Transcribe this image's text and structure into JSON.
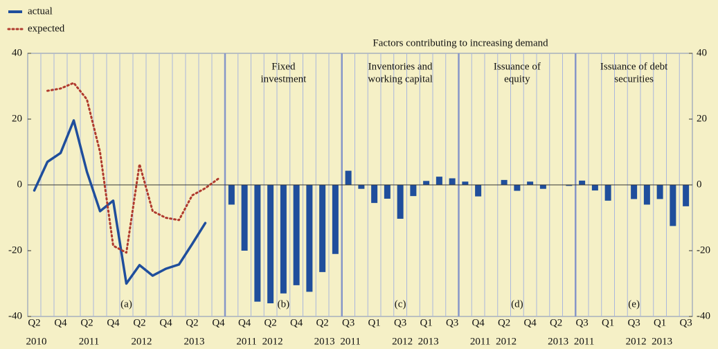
{
  "heading": "Factors contributing to increasing demand",
  "chart_data": [
    {
      "type": "line",
      "annotation": "(a)",
      "categories": [
        "Q2",
        null,
        "Q4",
        null,
        "Q2",
        null,
        "Q4",
        null,
        "Q2",
        null,
        "Q4",
        null,
        "Q2",
        null,
        "Q4"
      ],
      "years": [
        "2010",
        null,
        null,
        null,
        "2011",
        null,
        null,
        null,
        "2012",
        null,
        null,
        null,
        "2013",
        null,
        null
      ],
      "series": [
        {
          "name": "actual",
          "color": "#1f4e9c",
          "dash": "solid",
          "values": [
            -1.7,
            7,
            9.7,
            19.6,
            4,
            -8,
            -4.8,
            -30,
            -24.4,
            -27.6,
            -25.5,
            -24.2,
            -18,
            -11.6,
            null
          ]
        },
        {
          "name": "expected",
          "color": "#b03a2e",
          "dash": "dotted",
          "values": [
            null,
            28.6,
            29.3,
            31,
            26,
            10,
            -18.5,
            -20.6,
            6.3,
            -8,
            -10,
            -10.7,
            -3.2,
            -1,
            1.9
          ]
        }
      ],
      "ylim": [
        -40,
        40
      ],
      "yticks": [
        -40,
        -20,
        0,
        20,
        40
      ]
    },
    {
      "type": "bar",
      "title": [
        "Fixed",
        "investment"
      ],
      "annotation": "(b)",
      "color": "#1f4e9c",
      "categories": [
        null,
        "Q4",
        null,
        "Q2",
        null,
        "Q4",
        null,
        "Q2",
        null
      ],
      "years": [
        null,
        "2011",
        null,
        "2012",
        null,
        null,
        null,
        "2013",
        null
      ],
      "values": [
        -6,
        -20,
        -35.5,
        -36,
        -33,
        -30.5,
        -32.5,
        -26.5,
        -21
      ]
    },
    {
      "type": "bar",
      "title": [
        "Inventories and",
        "working capital"
      ],
      "annotation": "(c)",
      "color": "#1f4e9c",
      "categories": [
        "Q3",
        null,
        "Q1",
        null,
        "Q3",
        null,
        "Q1",
        null,
        "Q3"
      ],
      "years": [
        "2011",
        null,
        null,
        null,
        "2012",
        null,
        "2013",
        null,
        null
      ],
      "values": [
        4.3,
        -1.2,
        -5.5,
        -4.2,
        -10.3,
        -3.4,
        1.2,
        2.5,
        2
      ]
    },
    {
      "type": "bar",
      "title": [
        "Issuance of",
        "equity"
      ],
      "annotation": "(d)",
      "color": "#1f4e9c",
      "categories": [
        null,
        "Q4",
        null,
        "Q2",
        null,
        "Q4",
        null,
        "Q2",
        null
      ],
      "years": [
        null,
        "2011",
        null,
        "2012",
        null,
        null,
        null,
        "2013",
        null
      ],
      "values": [
        1,
        -3.5,
        0,
        1.5,
        -1.8,
        1,
        -1.2,
        0,
        -0.3
      ]
    },
    {
      "type": "bar",
      "title": [
        "Issuance of debt",
        "securities"
      ],
      "annotation": "(e)",
      "color": "#1f4e9c",
      "categories": [
        "Q3",
        null,
        "Q1",
        null,
        "Q3",
        null,
        "Q1",
        null,
        "Q3"
      ],
      "years": [
        "2011",
        null,
        null,
        null,
        "2012",
        null,
        "2013",
        null,
        null
      ],
      "values": [
        1.3,
        -1.7,
        -4.8,
        0,
        -4.3,
        -6,
        -4.3,
        -12.5,
        -6.5
      ]
    }
  ]
}
